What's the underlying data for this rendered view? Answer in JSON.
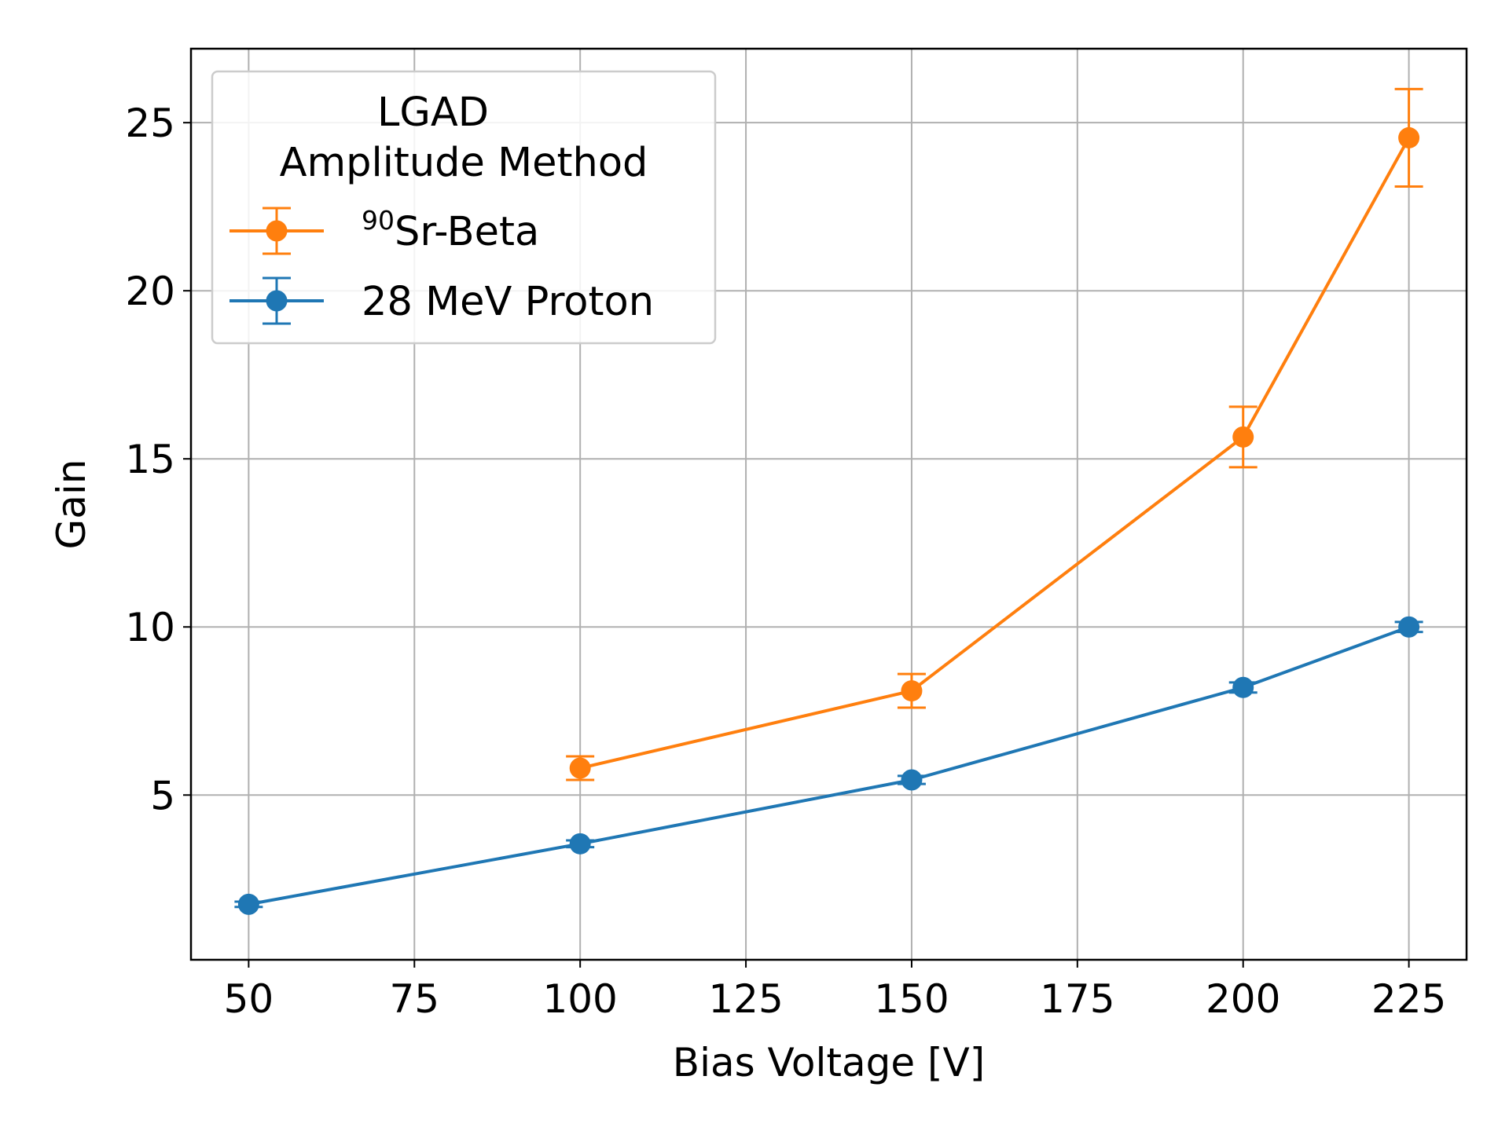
{
  "chart_data": {
    "type": "line",
    "title": "",
    "xlabel": "Bias Voltage [V]",
    "ylabel": "Gain",
    "xlim": [
      41.3,
      233.7
    ],
    "ylim": [
      0.1,
      27.2
    ],
    "xticks": [
      50,
      75,
      100,
      125,
      150,
      175,
      200,
      225
    ],
    "yticks": [
      5,
      10,
      15,
      20,
      25
    ],
    "grid": true,
    "legend": {
      "placement": "upper-left",
      "title_lines": [
        "LGAD",
        "Amplitude Method"
      ],
      "entries": [
        {
          "series": 0,
          "prefix_super": "90",
          "label": "Sr-Beta"
        },
        {
          "series": 1,
          "prefix_super": "",
          "label": "28 MeV Proton"
        }
      ]
    },
    "series": [
      {
        "name": "90Sr-Beta",
        "color": "#ff7f0e",
        "x": [
          100,
          150,
          200,
          225
        ],
        "y": [
          5.8,
          8.1,
          15.65,
          24.55
        ],
        "yerr": [
          0.35,
          0.5,
          0.9,
          1.45
        ]
      },
      {
        "name": "28 MeV Proton",
        "color": "#1f77b4",
        "x": [
          50,
          100,
          150,
          200,
          225
        ],
        "y": [
          1.75,
          3.55,
          5.45,
          8.2,
          10.0
        ],
        "yerr": [
          0.08,
          0.1,
          0.12,
          0.15,
          0.15
        ]
      }
    ]
  }
}
